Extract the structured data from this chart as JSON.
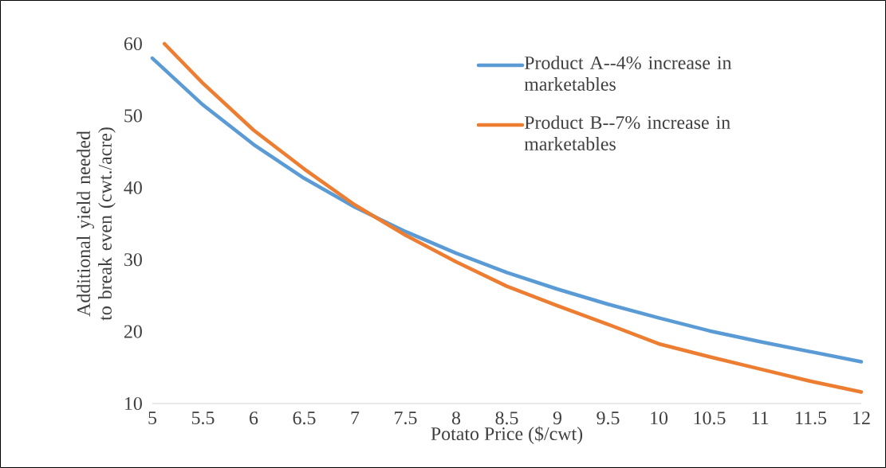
{
  "chart_data": {
    "type": "line",
    "xlabel": "Potato Price ($/cwt)",
    "ylabel": "Additional yield needed to break even (cwt./acre)",
    "xlim": [
      5,
      12
    ],
    "ylim": [
      10,
      60
    ],
    "xticks": [
      5,
      5.5,
      6,
      6.5,
      7,
      7.5,
      8,
      8.5,
      9,
      9.5,
      10,
      10.5,
      11,
      11.5,
      12
    ],
    "yticks": [
      10,
      20,
      30,
      40,
      50,
      60
    ],
    "legend": "top right",
    "series": [
      {
        "name": "Product A--4% increase in marketables",
        "color": "#5b9bd5",
        "x": [
          5,
          5.5,
          6,
          6.5,
          7,
          7.5,
          8,
          8.5,
          9,
          9.5,
          10,
          10.5,
          11,
          11.5,
          12
        ],
        "values": [
          58,
          51.5,
          46,
          41.3,
          37.3,
          33.9,
          30.9,
          28.2,
          25.9,
          23.8,
          21.9,
          20.1,
          18.6,
          17.2,
          15.8
        ]
      },
      {
        "name": "Product B--7% increase in marketables",
        "color": "#ed7d31",
        "x": [
          5.12,
          5.5,
          6,
          6.5,
          7,
          7.5,
          8,
          8.5,
          9,
          9.5,
          10,
          10.5,
          11,
          11.5,
          12
        ],
        "values": [
          60,
          54.5,
          48,
          42.6,
          37.6,
          33.4,
          29.7,
          26.3,
          23.6,
          21,
          18.3,
          16.5,
          14.8,
          13.1,
          11.6
        ]
      }
    ]
  }
}
